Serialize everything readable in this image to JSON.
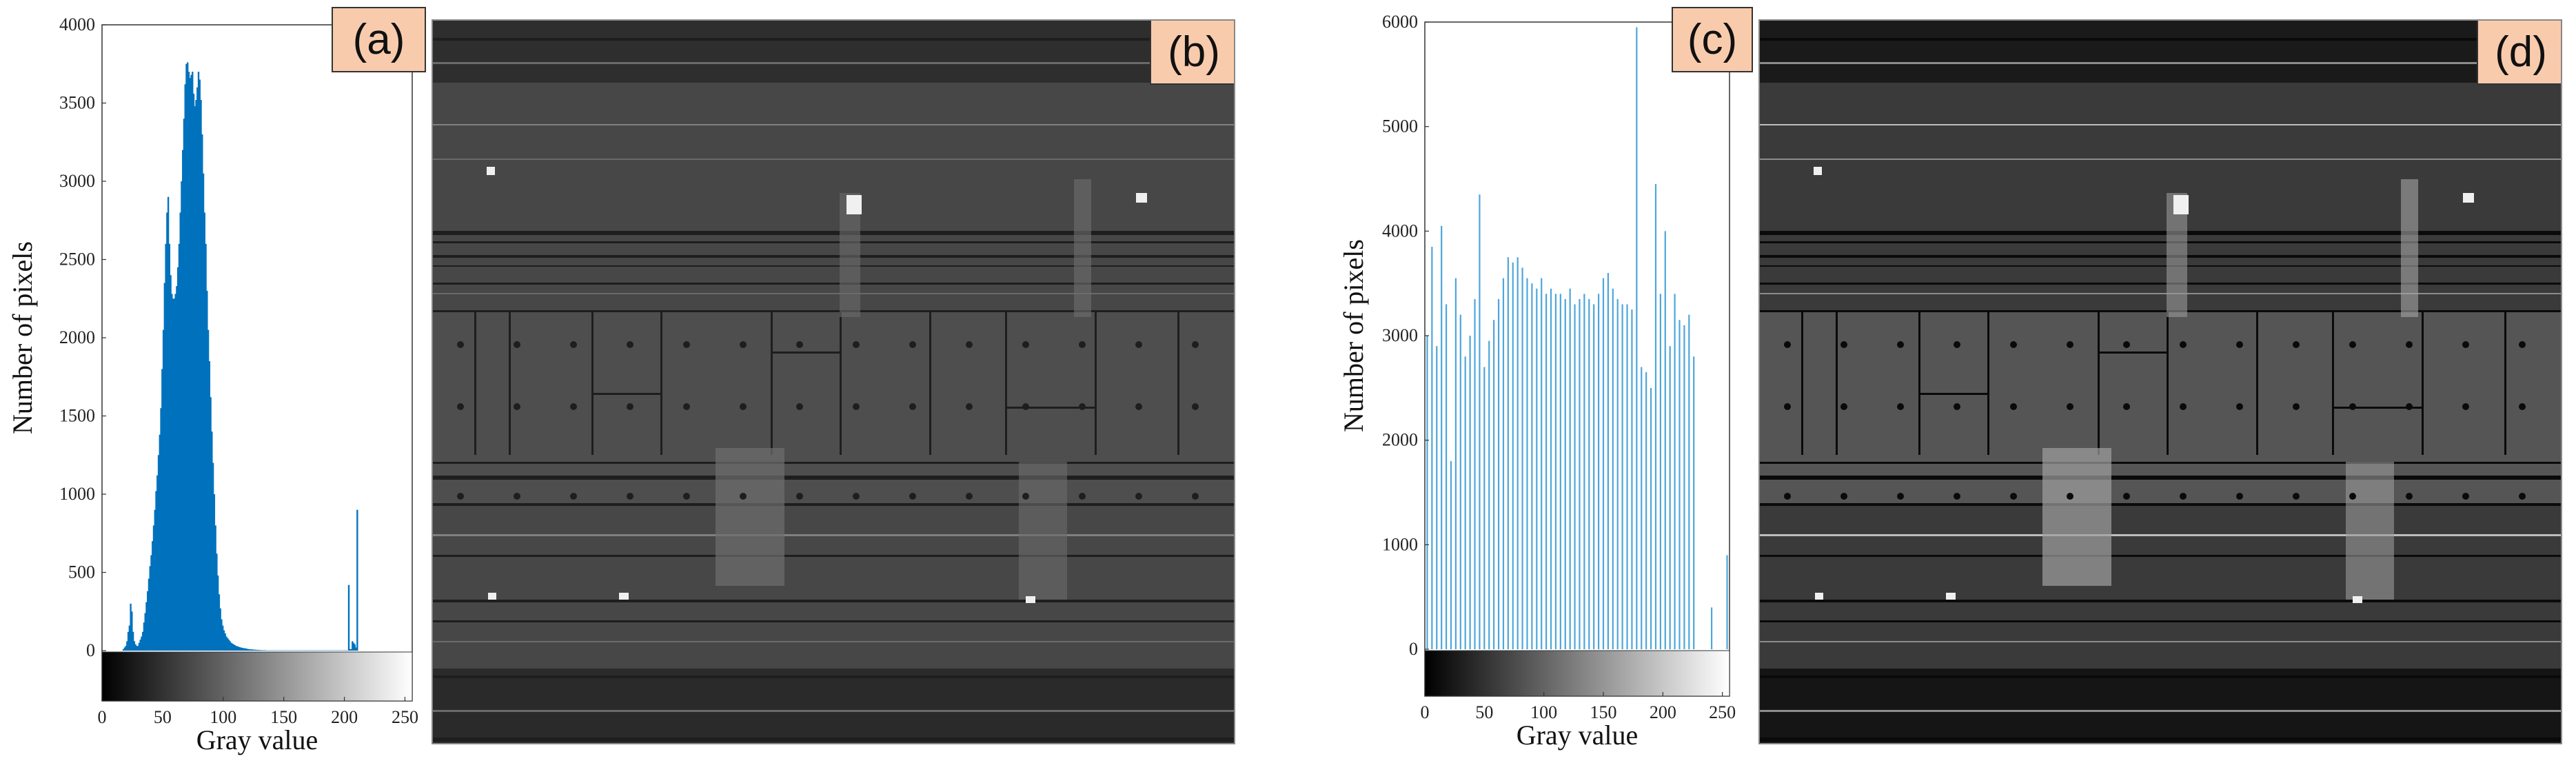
{
  "chart_data": [
    {
      "type": "bar",
      "panel": "a",
      "panel_label": "(a)",
      "title": "",
      "xlabel": "Gray value",
      "ylabel": "Number of pixels",
      "xlim": [
        0,
        256
      ],
      "ylim": [
        0,
        4000
      ],
      "xticks": [
        0,
        50,
        100,
        150,
        200,
        250
      ],
      "yticks": [
        0,
        500,
        1000,
        1500,
        2000,
        2500,
        3000,
        3500,
        4000
      ],
      "bar_color": "#0072bd",
      "values": [
        0,
        0,
        0,
        0,
        0,
        0,
        0,
        0,
        0,
        0,
        0,
        0,
        0,
        0,
        0,
        0,
        0,
        10,
        20,
        30,
        60,
        120,
        160,
        300,
        250,
        120,
        60,
        40,
        30,
        30,
        50,
        70,
        90,
        120,
        180,
        240,
        310,
        380,
        460,
        540,
        610,
        700,
        800,
        900,
        1020,
        1120,
        1250,
        1380,
        1550,
        1800,
        2050,
        2350,
        2600,
        2800,
        2900,
        2600,
        2400,
        2280,
        2250,
        2250,
        2280,
        2330,
        2450,
        2600,
        2800,
        3000,
        3200,
        3400,
        3620,
        3750,
        3760,
        3700,
        3660,
        3680,
        3700,
        3560,
        3480,
        3520,
        3600,
        3700,
        3650,
        3520,
        3300,
        3050,
        2800,
        2600,
        2300,
        2050,
        1850,
        1620,
        1400,
        1200,
        1000,
        800,
        620,
        480,
        360,
        270,
        200,
        160,
        130,
        110,
        90,
        80,
        70,
        60,
        50,
        45,
        40,
        35,
        30,
        28,
        25,
        22,
        20,
        18,
        16,
        15,
        14,
        12,
        10,
        9,
        8,
        8,
        7,
        6,
        6,
        5,
        5,
        4,
        4,
        3,
        3,
        3,
        3,
        2,
        2,
        2,
        2,
        2,
        2,
        2,
        2,
        2,
        2,
        2,
        2,
        2,
        2,
        2,
        2,
        2,
        2,
        2,
        2,
        2,
        2,
        2,
        2,
        2,
        2,
        2,
        2,
        2,
        2,
        2,
        2,
        2,
        2,
        2,
        2,
        2,
        2,
        2,
        2,
        2,
        2,
        2,
        2,
        2,
        2,
        2,
        2,
        2,
        2,
        2,
        2,
        2,
        2,
        2,
        2,
        2,
        2,
        2,
        2,
        2,
        2,
        2,
        2,
        2,
        2,
        2,
        2,
        420,
        10,
        10,
        60,
        50,
        40,
        20,
        900
      ]
    },
    {
      "type": "bar",
      "panel": "c",
      "panel_label": "(c)",
      "title": "",
      "xlabel": "Gray value",
      "ylabel": "Number of pixels",
      "xlim": [
        0,
        256
      ],
      "ylim": [
        0,
        6000
      ],
      "xticks": [
        0,
        50,
        100,
        150,
        200,
        250
      ],
      "yticks": [
        0,
        1000,
        2000,
        3000,
        4000,
        5000,
        6000
      ],
      "bar_color": "#4ea6d9",
      "x": [
        2,
        6,
        10,
        14,
        18,
        22,
        26,
        30,
        34,
        38,
        42,
        46,
        50,
        54,
        58,
        62,
        66,
        70,
        74,
        78,
        82,
        86,
        90,
        94,
        98,
        102,
        106,
        110,
        114,
        118,
        122,
        126,
        130,
        134,
        138,
        142,
        146,
        150,
        154,
        158,
        162,
        166,
        170,
        174,
        178,
        182,
        186,
        190,
        194,
        198,
        202,
        206,
        210,
        214,
        218,
        222,
        226,
        241,
        254
      ],
      "values": [
        3000,
        3850,
        2900,
        4050,
        3300,
        1800,
        3550,
        3200,
        2800,
        3000,
        3350,
        4350,
        2700,
        2950,
        3150,
        3350,
        3550,
        3750,
        3700,
        3750,
        3650,
        3550,
        3500,
        3450,
        3550,
        3400,
        3450,
        3400,
        3400,
        3350,
        3450,
        3300,
        3350,
        3400,
        3350,
        3300,
        3400,
        3550,
        3600,
        3450,
        3350,
        3300,
        3300,
        3250,
        5950,
        2700,
        2650,
        2500,
        4450,
        3400,
        4000,
        2900,
        3400,
        3150,
        3100,
        3200,
        2800,
        400,
        900
      ]
    }
  ],
  "panels": {
    "b": {
      "label": "(b)"
    },
    "d": {
      "label": "(d)"
    }
  }
}
